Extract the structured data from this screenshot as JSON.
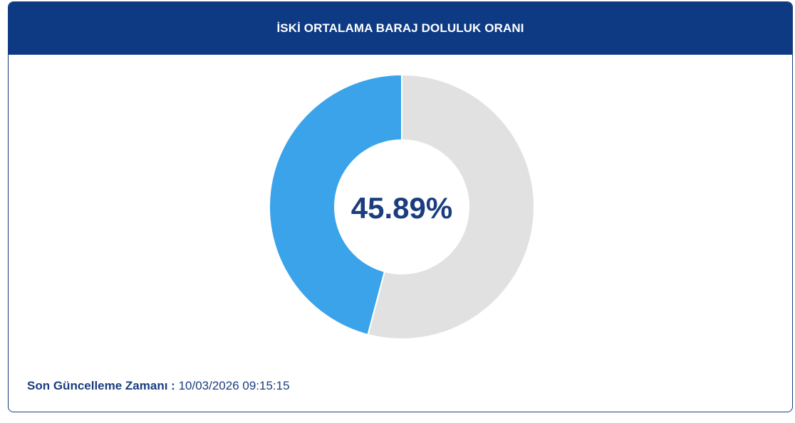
{
  "header": {
    "title": "İSKİ ORTALAMA BARAJ DOLULUK ORANI"
  },
  "footer": {
    "label": "Son Güncelleme Zamanı :",
    "value": "10/03/2026 09:15:15"
  },
  "colors": {
    "header_bg": "#0e3a84",
    "filled": "#3aa3ea",
    "empty": "#e1e1e1",
    "center_text": "#1b3d7e",
    "border": "#1b3d7e"
  },
  "chart_data": {
    "type": "pie",
    "center_label": "45.89%",
    "slices": [
      {
        "value": 45.89,
        "color": "#3aa3ea"
      },
      {
        "value": 54.11,
        "color": "#e1e1e1"
      }
    ],
    "direction": "counterclockwise"
  }
}
